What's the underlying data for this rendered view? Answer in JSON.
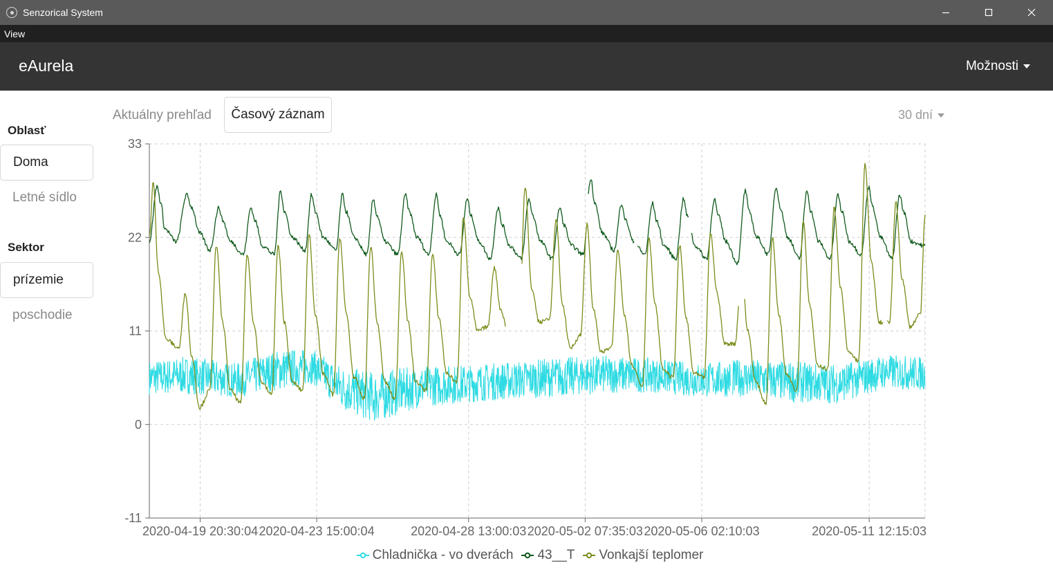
{
  "window": {
    "title": "Senzorical System"
  },
  "menu": {
    "items": [
      "View"
    ]
  },
  "navbar": {
    "brand": "eAurela",
    "options_label": "Možnosti"
  },
  "sidebar": {
    "area_heading": "Oblasť",
    "areas": [
      {
        "label": "Doma",
        "active": true
      },
      {
        "label": "Letné sídlo",
        "active": false
      }
    ],
    "sector_heading": "Sektor",
    "sectors": [
      {
        "label": "prízemie",
        "active": true
      },
      {
        "label": "poschodie",
        "active": false
      }
    ]
  },
  "view_tabs": {
    "overview_label": "Aktuálny prehľad",
    "log_label": "Časový záznam"
  },
  "range_selector": {
    "label": "30 dní"
  },
  "chart_data": {
    "type": "line",
    "title": "",
    "xlabel": "",
    "ylabel": "",
    "ylim": [
      -11,
      33
    ],
    "yticks": [
      -11,
      0,
      11,
      22,
      33
    ],
    "xlim": [
      "2020-04-18 05:00",
      "2020-05-13 07:40"
    ],
    "xticks": [
      "2020-04-19 20:30:04",
      "2020-04-23 15:00:04",
      "2020-04-28 13:00:03",
      "2020-05-02 07:35:03",
      "2020-05-06 02:10:03",
      "2020-05-11 12:15:03"
    ],
    "grid": true,
    "legend_position": "bottom-center",
    "series": [
      {
        "name": "Chladnička - vo dverách",
        "color": "#2fdbe3",
        "style": "noisy",
        "x": [
          "2020-04-18 05:00",
          "2020-04-19 12:00",
          "2020-04-21 00:00",
          "2020-04-22 12:00",
          "2020-04-23 12:00",
          "2020-04-24 12:00",
          "2020-04-25 12:00",
          "2020-04-27 00:00",
          "2020-04-28 12:00",
          "2020-04-30 00:00",
          "2020-05-01 12:00",
          "2020-05-03 00:00",
          "2020-05-04 12:00",
          "2020-05-06 00:00",
          "2020-05-07 12:00",
          "2020-05-09 00:00",
          "2020-05-10 12:00",
          "2020-05-12 00:00",
          "2020-05-13 07:40"
        ],
        "y": [
          5.5,
          5.8,
          5.2,
          6.5,
          6.8,
          4.2,
          3.2,
          4.5,
          4.8,
          5.2,
          5.6,
          5.9,
          5.8,
          5.2,
          5.5,
          5.0,
          4.8,
          6.2,
          6.0
        ],
        "amplitude": [
          2.0,
          2.2,
          2.0,
          2.4,
          2.0,
          2.6,
          3.0,
          2.4,
          2.2,
          2.2,
          2.3,
          2.2,
          2.0,
          2.0,
          2.2,
          2.4,
          2.3,
          2.0,
          2.0
        ],
        "gaps": [
          [
            "2020-05-07 00:30",
            "2020-05-07 02:00"
          ]
        ]
      },
      {
        "name": "43__T",
        "color": "#0f5a1c",
        "x": [
          "2020-04-18 05:00",
          "2020-04-18 11:00",
          "2020-04-18 14:00",
          "2020-04-18 17:00",
          "2020-04-19 02:00",
          "2020-04-19 10:00",
          "2020-04-19 14:00",
          "2020-04-19 20:00",
          "2020-04-20 04:00",
          "2020-04-20 11:00",
          "2020-04-20 14:00",
          "2020-04-20 20:00",
          "2020-04-21 06:00",
          "2020-04-21 12:00",
          "2020-04-21 15:00",
          "2020-04-21 21:00",
          "2020-04-22 06:00",
          "2020-04-22 11:00",
          "2020-04-22 14:00",
          "2020-04-22 20:00",
          "2020-04-23 06:00",
          "2020-04-23 11:00",
          "2020-04-23 14:00",
          "2020-04-23 20:00",
          "2020-04-24 06:00",
          "2020-04-24 11:00",
          "2020-04-24 14:00",
          "2020-04-24 20:00",
          "2020-04-25 06:00",
          "2020-04-25 11:00",
          "2020-04-25 14:00",
          "2020-04-25 20:00",
          "2020-04-26 06:00",
          "2020-04-26 12:00",
          "2020-04-26 15:00",
          "2020-04-26 21:00",
          "2020-04-27 06:00",
          "2020-04-27 12:00",
          "2020-04-27 15:00",
          "2020-04-27 20:00",
          "2020-04-28 06:00",
          "2020-04-28 12:00",
          "2020-04-28 15:00",
          "2020-04-28 21:00",
          "2020-04-29 06:00",
          "2020-04-29 12:00",
          "2020-04-29 15:00",
          "2020-04-29 21:00",
          "2020-04-30 06:00",
          "2020-04-30 12:00",
          "2020-04-30 15:00",
          "2020-04-30 21:00",
          "2020-05-01 06:00",
          "2020-05-01 12:00",
          "2020-05-01 15:00",
          "2020-05-01 21:00",
          "2020-05-02 06:00",
          "2020-05-02 12:00",
          "2020-05-02 15:00",
          "2020-05-02 21:00",
          "2020-05-03 06:00",
          "2020-05-03 12:00",
          "2020-05-03 15:00",
          "2020-05-03 21:00",
          "2020-05-04 06:00",
          "2020-05-04 12:00",
          "2020-05-04 15:00",
          "2020-05-04 21:00",
          "2020-05-05 06:00",
          "2020-05-05 12:00",
          "2020-05-05 15:00",
          "2020-05-05 21:00",
          "2020-05-06 06:00",
          "2020-05-06 12:00",
          "2020-05-06 15:00",
          "2020-05-06 21:00",
          "2020-05-07 06:00",
          "2020-05-07 12:00",
          "2020-05-07 15:00",
          "2020-05-07 21:00",
          "2020-05-08 06:00",
          "2020-05-08 12:00",
          "2020-05-08 15:00",
          "2020-05-08 21:00",
          "2020-05-09 06:00",
          "2020-05-09 12:00",
          "2020-05-09 15:00",
          "2020-05-09 21:00",
          "2020-05-10 06:00",
          "2020-05-10 12:00",
          "2020-05-10 15:00",
          "2020-05-10 21:00",
          "2020-05-11 06:00",
          "2020-05-11 12:00",
          "2020-05-11 15:00",
          "2020-05-11 21:00",
          "2020-05-12 06:00",
          "2020-05-12 12:00",
          "2020-05-12 15:00",
          "2020-05-12 21:00",
          "2020-05-13 07:40"
        ],
        "y": [
          21.5,
          28.0,
          26.0,
          23.0,
          21.5,
          27.0,
          25.5,
          22.5,
          20.5,
          25.5,
          24.0,
          21.5,
          20.0,
          25.5,
          24.0,
          21.0,
          20.0,
          27.5,
          25.0,
          22.0,
          20.5,
          27.0,
          25.0,
          22.0,
          20.5,
          27.0,
          25.0,
          22.0,
          20.0,
          26.5,
          24.5,
          21.5,
          20.0,
          27.0,
          25.0,
          22.0,
          20.0,
          27.0,
          24.5,
          21.5,
          20.0,
          26.5,
          24.5,
          21.5,
          19.5,
          25.5,
          23.5,
          21.0,
          19.5,
          26.5,
          24.5,
          21.5,
          19.5,
          25.5,
          23.5,
          21.0,
          20.0,
          29.0,
          26.0,
          22.5,
          20.5,
          26.0,
          24.0,
          21.5,
          20.0,
          26.0,
          24.0,
          21.0,
          19.5,
          26.5,
          24.5,
          21.0,
          19.5,
          26.5,
          24.5,
          21.5,
          19.0,
          27.5,
          25.0,
          22.0,
          20.0,
          28.0,
          25.5,
          22.0,
          19.5,
          27.5,
          25.0,
          21.5,
          19.5,
          27.0,
          25.0,
          21.5,
          20.0,
          28.0,
          25.5,
          22.0,
          19.5,
          27.0,
          25.0,
          21.5,
          21.0
        ],
        "gaps": [
          [
            "2020-05-02 08:00",
            "2020-05-02 10:00"
          ],
          [
            "2020-05-03 22:00",
            "2020-05-04 00:00"
          ],
          [
            "2020-05-05 16:00",
            "2020-05-05 18:00"
          ]
        ]
      },
      {
        "name": "Vonkajší teplomer",
        "color": "#7a8c1a",
        "x": [
          "2020-04-18 05:00",
          "2020-04-18 08:00",
          "2020-04-18 12:00",
          "2020-04-18 18:00",
          "2020-04-19 04:00",
          "2020-04-19 09:00",
          "2020-04-19 14:00",
          "2020-04-19 20:00",
          "2020-04-20 04:00",
          "2020-04-20 09:00",
          "2020-04-20 14:00",
          "2020-04-20 20:00",
          "2020-04-21 04:00",
          "2020-04-21 09:00",
          "2020-04-21 14:00",
          "2020-04-21 20:00",
          "2020-04-22 04:00",
          "2020-04-22 09:00",
          "2020-04-22 14:00",
          "2020-04-22 20:00",
          "2020-04-23 04:00",
          "2020-04-23 09:00",
          "2020-04-23 14:00",
          "2020-04-23 20:00",
          "2020-04-24 04:00",
          "2020-04-24 09:00",
          "2020-04-24 14:00",
          "2020-04-24 20:00",
          "2020-04-25 04:00",
          "2020-04-25 09:00",
          "2020-04-25 14:00",
          "2020-04-25 20:00",
          "2020-04-26 04:00",
          "2020-04-26 09:00",
          "2020-04-26 14:00",
          "2020-04-26 20:00",
          "2020-04-27 04:00",
          "2020-04-27 09:00",
          "2020-04-27 14:00",
          "2020-04-27 20:00",
          "2020-04-28 04:00",
          "2020-04-28 09:00",
          "2020-04-28 14:00",
          "2020-04-28 20:00",
          "2020-04-29 04:00",
          "2020-04-29 09:00",
          "2020-04-29 14:00",
          "2020-04-29 20:00",
          "2020-04-30 04:00",
          "2020-04-30 09:00",
          "2020-04-30 14:00",
          "2020-04-30 20:00",
          "2020-05-01 04:00",
          "2020-05-01 09:00",
          "2020-05-01 14:00",
          "2020-05-01 20:00",
          "2020-05-02 04:00",
          "2020-05-02 09:00",
          "2020-05-02 14:00",
          "2020-05-02 20:00",
          "2020-05-03 04:00",
          "2020-05-03 09:00",
          "2020-05-03 14:00",
          "2020-05-03 20:00",
          "2020-05-04 04:00",
          "2020-05-04 09:00",
          "2020-05-04 14:00",
          "2020-05-04 20:00",
          "2020-05-05 04:00",
          "2020-05-05 09:00",
          "2020-05-05 14:00",
          "2020-05-05 20:00",
          "2020-05-06 04:00",
          "2020-05-06 09:00",
          "2020-05-06 14:00",
          "2020-05-06 20:00",
          "2020-05-07 04:00",
          "2020-05-07 09:00",
          "2020-05-07 14:00",
          "2020-05-07 20:00",
          "2020-05-08 04:00",
          "2020-05-08 09:00",
          "2020-05-08 14:00",
          "2020-05-08 20:00",
          "2020-05-09 04:00",
          "2020-05-09 09:00",
          "2020-05-09 14:00",
          "2020-05-09 20:00",
          "2020-05-10 04:00",
          "2020-05-10 09:00",
          "2020-05-10 14:00",
          "2020-05-10 20:00",
          "2020-05-11 04:00",
          "2020-05-11 09:00",
          "2020-05-11 14:00",
          "2020-05-11 20:00",
          "2020-05-12 04:00",
          "2020-05-12 09:00",
          "2020-05-12 14:00",
          "2020-05-12 20:00",
          "2020-05-13 04:00",
          "2020-05-13 07:40"
        ],
        "y": [
          22.0,
          28.5,
          18.0,
          10.0,
          9.0,
          15.5,
          8.0,
          2.0,
          4.0,
          21.0,
          12.0,
          4.0,
          2.5,
          20.0,
          12.0,
          5.0,
          3.5,
          21.0,
          12.0,
          5.0,
          4.0,
          22.5,
          13.0,
          6.0,
          3.5,
          22.0,
          13.0,
          5.5,
          3.0,
          21.0,
          12.0,
          5.0,
          3.0,
          20.5,
          12.0,
          5.0,
          4.0,
          20.0,
          12.5,
          6.0,
          5.0,
          24.5,
          15.0,
          11.0,
          11.5,
          18.5,
          13.5,
          10.5,
          10.0,
          28.0,
          16.0,
          12.0,
          12.5,
          24.0,
          14.0,
          9.0,
          10.5,
          23.5,
          13.5,
          8.5,
          9.0,
          20.5,
          13.0,
          7.0,
          4.5,
          22.0,
          14.0,
          6.5,
          5.5,
          21.0,
          12.5,
          6.0,
          5.5,
          22.5,
          15.5,
          9.5,
          9.5,
          18.0,
          11.0,
          5.0,
          2.5,
          22.0,
          13.0,
          6.0,
          4.0,
          24.0,
          14.0,
          7.0,
          6.5,
          25.5,
          16.0,
          8.5,
          7.5,
          30.5,
          19.0,
          12.0,
          12.0,
          26.0,
          17.0,
          11.5,
          13.0,
          24.5
        ],
        "gaps": [
          [
            "2020-04-29 18:00",
            "2020-04-30 06:00"
          ],
          [
            "2020-05-07 07:00",
            "2020-05-07 11:00"
          ],
          [
            "2020-05-11 23:00",
            "2020-05-12 02:00"
          ]
        ]
      }
    ]
  }
}
